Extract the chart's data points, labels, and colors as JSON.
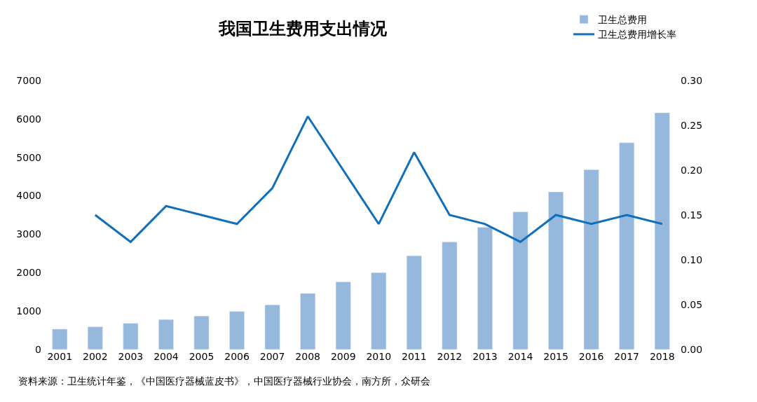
{
  "chart_data": {
    "type": "bar",
    "title": "我国卫生费用支出情况",
    "categories": [
      "2001",
      "2002",
      "2003",
      "2004",
      "2005",
      "2006",
      "2007",
      "2008",
      "2009",
      "2010",
      "2011",
      "2012",
      "2013",
      "2014",
      "2015",
      "2016",
      "2017",
      "2018"
    ],
    "series": [
      {
        "name": "卫生总费用",
        "color": "#95b8dc",
        "values": [
          530,
          590,
          680,
          780,
          870,
          990,
          1160,
          1460,
          1760,
          2000,
          2440,
          2800,
          3180,
          3580,
          4100,
          4680,
          5380,
          6160
        ]
      },
      {
        "name": "卫生总费用增长率",
        "type": "line",
        "axis": "y2",
        "color": "#0f6fba",
        "values": [
          null,
          0.15,
          0.12,
          0.16,
          0.15,
          0.14,
          0.18,
          0.26,
          0.2,
          0.14,
          0.22,
          0.15,
          0.14,
          0.12,
          0.15,
          0.14,
          0.15,
          0.14
        ]
      }
    ],
    "ylim": [
      0,
      7000
    ],
    "yticks": [
      0,
      1000,
      2000,
      3000,
      4000,
      5000,
      6000,
      7000
    ],
    "y2lim": [
      0,
      0.3
    ],
    "y2ticks": [
      {
        "value": 0,
        "label": "0.00"
      },
      {
        "value": 0.05,
        "label": "0.05"
      },
      {
        "value": 0.1,
        "label": "0.10"
      },
      {
        "value": 0.15,
        "label": "0.15"
      },
      {
        "value": 0.2,
        "label": "0.20"
      },
      {
        "value": 0.25,
        "label": "0.25"
      },
      {
        "value": 0.3,
        "label": "0.30"
      }
    ],
    "legend": "top right",
    "marker": "none",
    "annotations": [
      "资料来源：卫生统计年鉴，《中国医疗器械蓝皮书》，中国医疗器械行业协会，南方所，众研会"
    ]
  }
}
